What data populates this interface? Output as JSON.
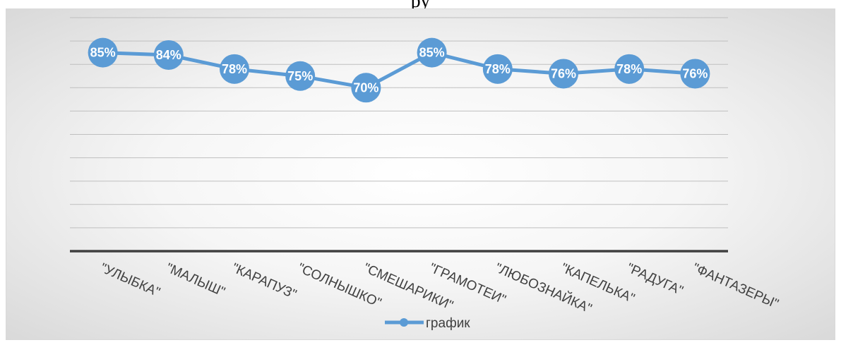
{
  "title_fragment": "ру",
  "chart_data": {
    "type": "line",
    "categories": [
      "\"УЛЫБКА\"",
      "\"МАЛЫШ\"",
      "\"КАРАПУЗ\"",
      "\"СОЛНЫШКО\"",
      "\"СМЕШАРИКИ\"",
      "\"ГРАМОТЕИ\"",
      "\"ЛЮБОЗНАЙКА\"",
      "\"КАПЕЛЬКА\"",
      "\"РАДУГА\"",
      "\"ФАНТАЗЕРЫ\""
    ],
    "series": [
      {
        "name": "график",
        "values": [
          85,
          84,
          78,
          75,
          70,
          85,
          78,
          76,
          78,
          76
        ],
        "labels": [
          "85%",
          "84%",
          "78%",
          "75%",
          "70%",
          "85%",
          "78%",
          "76%",
          "78%",
          "76%"
        ],
        "color": "#5b9bd5"
      }
    ],
    "ylim": [
      0,
      100
    ],
    "grid": true,
    "axis_color": "#404040",
    "gridline_color": "#bfbfbf",
    "legend_position": "bottom"
  }
}
